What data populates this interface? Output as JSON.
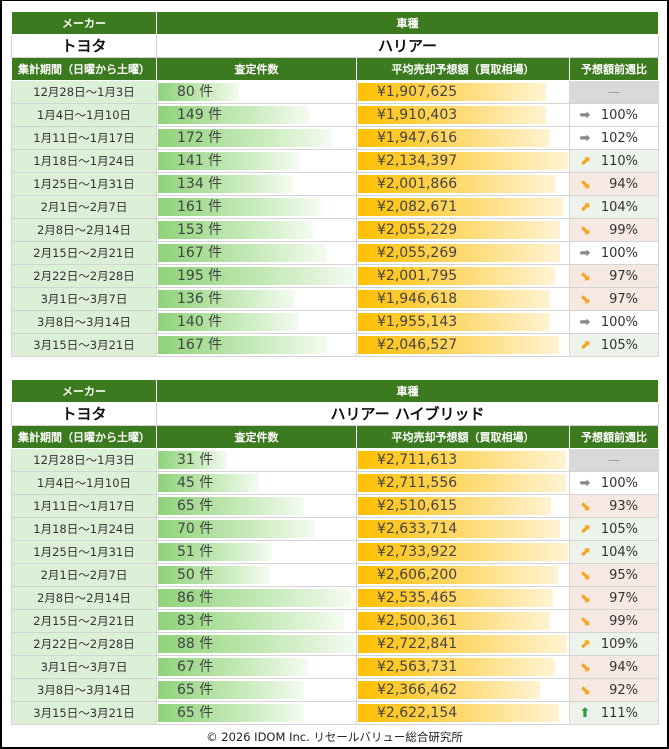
{
  "headers": {
    "maker": "メーカー",
    "model": "車種",
    "period": "集計期間（日曜から土曜）",
    "count": "査定件数",
    "price": "平均売却予想額（買取相場）",
    "change": "予想額前週比"
  },
  "count_suffix": " 件",
  "tables": [
    {
      "maker": "トヨタ",
      "model": "ハリアー",
      "rows": [
        {
          "period": "12月28日～1月3日",
          "count": 80,
          "price": "¥1,907,625",
          "price_value": 1907625,
          "change": "—",
          "trend": "none"
        },
        {
          "period": "1月4日～1月10日",
          "count": 149,
          "price": "¥1,910,403",
          "price_value": 1910403,
          "change": "100%",
          "trend": "flat"
        },
        {
          "period": "1月11日～1月17日",
          "count": 172,
          "price": "¥1,947,616",
          "price_value": 1947616,
          "change": "102%",
          "trend": "flat"
        },
        {
          "period": "1月18日～1月24日",
          "count": 141,
          "price": "¥2,134,397",
          "price_value": 2134397,
          "change": "110%",
          "trend": "up"
        },
        {
          "period": "1月25日～1月31日",
          "count": 134,
          "price": "¥2,001,866",
          "price_value": 2001866,
          "change": "94%",
          "trend": "down"
        },
        {
          "period": "2月1日～2月7日",
          "count": 161,
          "price": "¥2,082,671",
          "price_value": 2082671,
          "change": "104%",
          "trend": "up"
        },
        {
          "period": "2月8日～2月14日",
          "count": 153,
          "price": "¥2,055,229",
          "price_value": 2055229,
          "change": "99%",
          "trend": "down"
        },
        {
          "period": "2月15日～2月21日",
          "count": 167,
          "price": "¥2,055,269",
          "price_value": 2055269,
          "change": "100%",
          "trend": "flat"
        },
        {
          "period": "2月22日～2月28日",
          "count": 195,
          "price": "¥2,001,795",
          "price_value": 2001795,
          "change": "97%",
          "trend": "down"
        },
        {
          "period": "3月1日～3月7日",
          "count": 136,
          "price": "¥1,946,618",
          "price_value": 1946618,
          "change": "97%",
          "trend": "down"
        },
        {
          "period": "3月8日～3月14日",
          "count": 140,
          "price": "¥1,955,143",
          "price_value": 1955143,
          "change": "100%",
          "trend": "flat"
        },
        {
          "period": "3月15日～3月21日",
          "count": 167,
          "price": "¥2,046,527",
          "price_value": 2046527,
          "change": "105%",
          "trend": "up"
        }
      ]
    },
    {
      "maker": "トヨタ",
      "model": "ハリアー ハイブリッド",
      "rows": [
        {
          "period": "12月28日～1月3日",
          "count": 31,
          "price": "¥2,711,613",
          "price_value": 2711613,
          "change": "—",
          "trend": "none"
        },
        {
          "period": "1月4日～1月10日",
          "count": 45,
          "price": "¥2,711,556",
          "price_value": 2711556,
          "change": "100%",
          "trend": "flat"
        },
        {
          "period": "1月11日～1月17日",
          "count": 65,
          "price": "¥2,510,615",
          "price_value": 2510615,
          "change": "93%",
          "trend": "down"
        },
        {
          "period": "1月18日～1月24日",
          "count": 70,
          "price": "¥2,633,714",
          "price_value": 2633714,
          "change": "105%",
          "trend": "up"
        },
        {
          "period": "1月25日～1月31日",
          "count": 51,
          "price": "¥2,733,922",
          "price_value": 2733922,
          "change": "104%",
          "trend": "up"
        },
        {
          "period": "2月1日～2月7日",
          "count": 50,
          "price": "¥2,606,200",
          "price_value": 2606200,
          "change": "95%",
          "trend": "down"
        },
        {
          "period": "2月8日～2月14日",
          "count": 86,
          "price": "¥2,535,465",
          "price_value": 2535465,
          "change": "97%",
          "trend": "down"
        },
        {
          "period": "2月15日～2月21日",
          "count": 83,
          "price": "¥2,500,361",
          "price_value": 2500361,
          "change": "99%",
          "trend": "down"
        },
        {
          "period": "2月22日～2月28日",
          "count": 88,
          "price": "¥2,722,841",
          "price_value": 2722841,
          "change": "109%",
          "trend": "up"
        },
        {
          "period": "3月1日～3月7日",
          "count": 67,
          "price": "¥2,563,731",
          "price_value": 2563731,
          "change": "94%",
          "trend": "down"
        },
        {
          "period": "3月8日～3月14日",
          "count": 65,
          "price": "¥2,366,462",
          "price_value": 2366462,
          "change": "92%",
          "trend": "down"
        },
        {
          "period": "3月15日～3月21日",
          "count": 65,
          "price": "¥2,622,154",
          "price_value": 2622154,
          "change": "111%",
          "trend": "strong-up"
        }
      ]
    }
  ],
  "footer": "© 2026 IDOM Inc. リセールバリュー総合研究所",
  "colors": {
    "header": "#3b7a1f",
    "up_bg": "#edf3ea",
    "down_bg": "#f6e9e2",
    "strong_up": "#2e9b3e",
    "arrow_orange": "#f5a623",
    "arrow_gray": "#888888"
  }
}
